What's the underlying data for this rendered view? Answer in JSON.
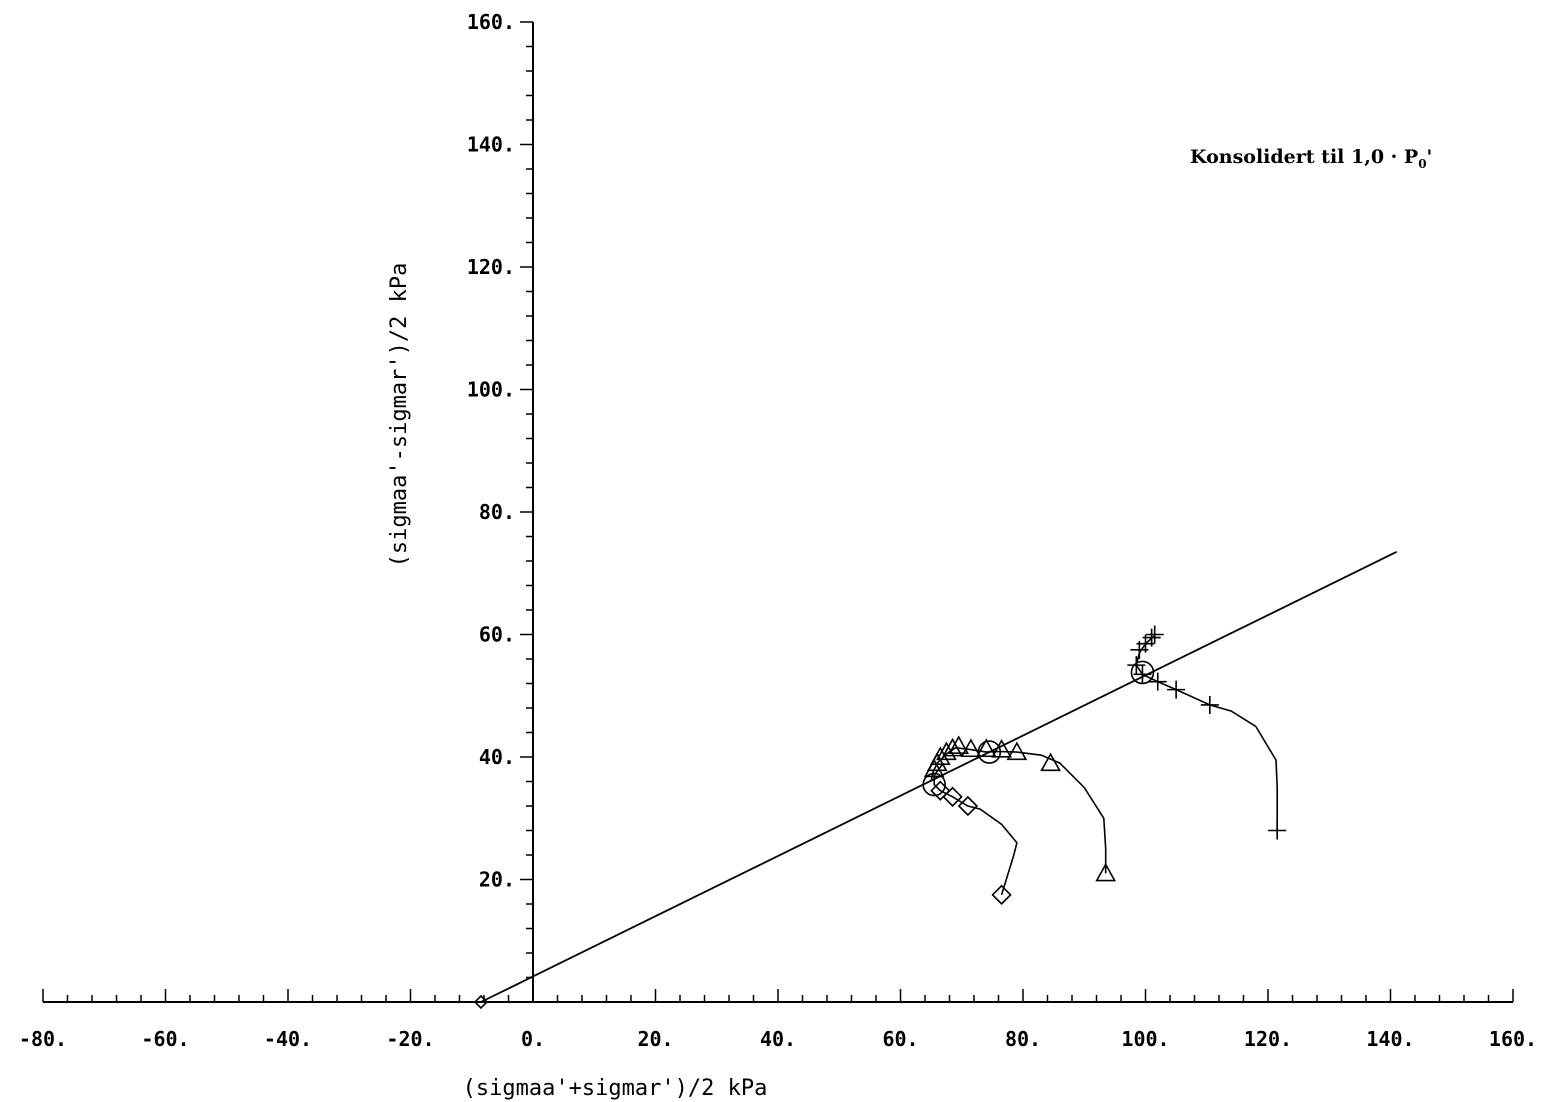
{
  "chart_data": {
    "type": "line",
    "xlabel": "(sigmaa'+sigmar')/2 kPa",
    "ylabel": "(sigmaa'-sigmar')/2 kPa",
    "xlim": [
      -80,
      160
    ],
    "ylim": [
      0,
      160
    ],
    "x_ticks": [
      "-80.",
      "-60.",
      "-40.",
      "-20.",
      "0.",
      "20.",
      "40.",
      "60.",
      "80.",
      "100.",
      "120.",
      "140.",
      "160."
    ],
    "y_ticks": [
      "20.",
      "40.",
      "60.",
      "80.",
      "100.",
      "120.",
      "140.",
      "160."
    ],
    "annotation": {
      "text": "Konsolidert til 1,0 · P",
      "subscript": "0",
      "suffix": "'"
    },
    "reference_line": {
      "name": "",
      "points": [
        [
          -8.5,
          0
        ],
        [
          141,
          73.5
        ]
      ],
      "origin_marker": [
        -8.5,
        0
      ]
    },
    "series": [
      {
        "marker": "diamond",
        "path": [
          [
            76.5,
            17.5
          ],
          [
            78.5,
            24
          ],
          [
            79,
            26
          ],
          [
            76.5,
            29
          ],
          [
            73,
            31.5
          ],
          [
            71,
            32
          ],
          [
            68.5,
            33.5
          ],
          [
            66.5,
            34.5
          ],
          [
            65.5,
            35.5
          ],
          [
            65.5,
            37
          ],
          [
            67,
            39
          ]
        ],
        "markers": [
          [
            76.5,
            17.5
          ],
          [
            71,
            32
          ],
          [
            68.5,
            33.5
          ],
          [
            66.5,
            34.5
          ]
        ],
        "circle": [
          65.5,
          35.5
        ]
      },
      {
        "marker": "triangle",
        "path": [
          [
            93.5,
            21
          ],
          [
            93.5,
            25
          ],
          [
            93.2,
            30
          ],
          [
            90,
            35
          ],
          [
            86,
            39
          ],
          [
            83,
            40.3
          ],
          [
            79,
            40.8
          ],
          [
            76,
            40.9
          ],
          [
            74,
            40.8
          ],
          [
            71.5,
            41.2
          ],
          [
            69,
            41.5
          ],
          [
            67.5,
            40.5
          ],
          [
            66,
            39
          ],
          [
            65.3,
            37.5
          ],
          [
            65,
            36
          ]
        ],
        "markers": [
          [
            93.5,
            21
          ],
          [
            84.5,
            39
          ],
          [
            79,
            40.8
          ],
          [
            76.5,
            41.2
          ],
          [
            74,
            41.3
          ],
          [
            71.5,
            41.3
          ],
          [
            69.5,
            41.8
          ],
          [
            68.5,
            41.4
          ],
          [
            67.5,
            40.8
          ],
          [
            66.5,
            40
          ],
          [
            66,
            39
          ],
          [
            65.5,
            38
          ]
        ],
        "circle": [
          74.5,
          40.8
        ]
      },
      {
        "marker": "plus",
        "path": [
          [
            121.5,
            28
          ],
          [
            121.5,
            35
          ],
          [
            121.3,
            39.5
          ],
          [
            118,
            45
          ],
          [
            114,
            47.5
          ],
          [
            110.5,
            48.5
          ],
          [
            105,
            51
          ],
          [
            102,
            52.3
          ],
          [
            99.5,
            53.5
          ],
          [
            98.5,
            55
          ],
          [
            99,
            57
          ],
          [
            100,
            58.5
          ],
          [
            101.5,
            59.8
          ]
        ],
        "markers": [
          [
            121.5,
            28
          ],
          [
            110.5,
            48.5
          ],
          [
            105,
            51
          ],
          [
            102,
            52.3
          ],
          [
            99.5,
            53.5
          ],
          [
            98.5,
            55
          ],
          [
            99,
            57.5
          ],
          [
            100,
            58.5
          ],
          [
            101,
            59.5
          ],
          [
            101.5,
            60
          ]
        ],
        "circle": [
          99.5,
          53.8
        ]
      }
    ]
  }
}
